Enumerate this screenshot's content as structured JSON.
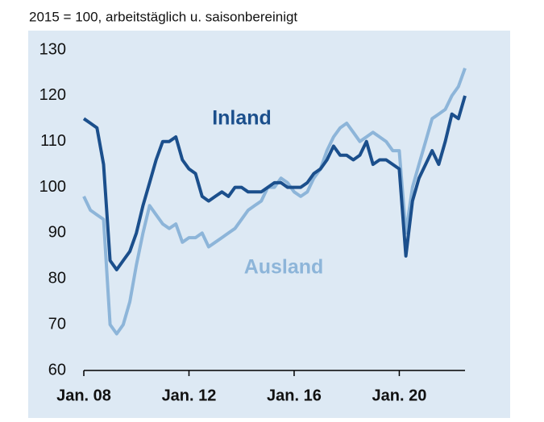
{
  "chart_data": {
    "type": "line",
    "subtitle": "2015 = 100, arbeitstäglich u. saisonbereinigt",
    "x": [
      2008,
      2008.25,
      2008.5,
      2008.75,
      2009,
      2009.25,
      2009.5,
      2009.75,
      2010,
      2010.25,
      2010.5,
      2010.75,
      2011,
      2011.25,
      2011.5,
      2011.75,
      2012,
      2012.25,
      2012.5,
      2012.75,
      2013,
      2013.25,
      2013.5,
      2013.75,
      2014,
      2014.25,
      2014.5,
      2014.75,
      2015,
      2015.25,
      2015.5,
      2015.75,
      2016,
      2016.25,
      2016.5,
      2016.75,
      2017,
      2017.25,
      2017.5,
      2017.75,
      2018,
      2018.25,
      2018.5,
      2018.75,
      2019,
      2019.25,
      2019.5,
      2019.75,
      2020,
      2020.25,
      2020.5,
      2020.75,
      2021,
      2021.25,
      2021.5,
      2021.75,
      2022,
      2022.25,
      2022.5
    ],
    "series": [
      {
        "name": "Inland",
        "color": "#1b4f8c",
        "values": [
          115,
          114,
          113,
          105,
          84,
          82,
          84,
          86,
          90,
          96,
          101,
          106,
          110,
          110,
          111,
          106,
          104,
          103,
          98,
          97,
          98,
          99,
          98,
          100,
          100,
          99,
          99,
          99,
          100,
          101,
          101,
          100,
          100,
          100,
          101,
          103,
          104,
          106,
          109,
          107,
          107,
          106,
          107,
          110,
          105,
          106,
          106,
          105,
          104,
          85,
          97,
          102,
          105,
          108,
          105,
          110,
          116,
          115,
          120
        ]
      },
      {
        "name": "Ausland",
        "color": "#8db5d9",
        "values": [
          98,
          95,
          94,
          93,
          70,
          68,
          70,
          75,
          83,
          90,
          96,
          94,
          92,
          91,
          92,
          88,
          89,
          89,
          90,
          87,
          88,
          89,
          90,
          91,
          93,
          95,
          96,
          97,
          100,
          100,
          102,
          101,
          99,
          98,
          99,
          102,
          104,
          108,
          111,
          113,
          114,
          112,
          110,
          111,
          112,
          111,
          110,
          108,
          108,
          90,
          100,
          105,
          110,
          115,
          116,
          117,
          120,
          122,
          126
        ]
      }
    ],
    "xlim": [
      2008,
      2022.5
    ],
    "xticks": [
      {
        "value": 2008,
        "label": "Jan. 08"
      },
      {
        "value": 2012,
        "label": "Jan. 12"
      },
      {
        "value": 2016,
        "label": "Jan. 16"
      },
      {
        "value": 2020,
        "label": "Jan. 20"
      }
    ],
    "ylim": [
      60,
      130
    ],
    "yticks": [
      60,
      70,
      80,
      90,
      100,
      110,
      120,
      130
    ],
    "grid": false
  }
}
